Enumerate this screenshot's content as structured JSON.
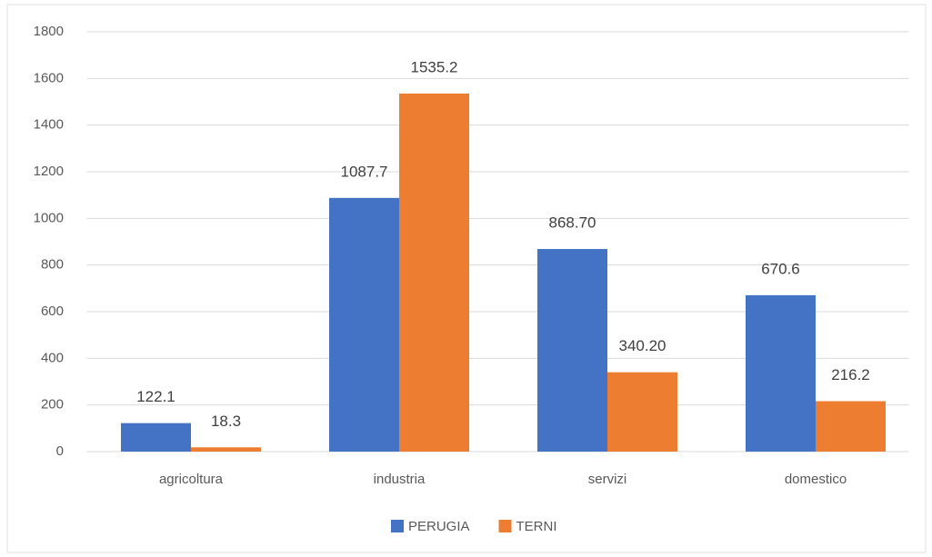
{
  "chart_data": {
    "type": "bar",
    "categories": [
      "agricoltura",
      "industria",
      "servizi",
      "domestico"
    ],
    "series": [
      {
        "name": "PERUGIA",
        "color": "#4472c4",
        "values": [
          122.1,
          1087.7,
          868.7,
          670.6
        ],
        "value_labels": [
          "122.1",
          "1087.7",
          "868.70",
          "670.6"
        ]
      },
      {
        "name": "TERNI",
        "color": "#ed7d31",
        "values": [
          18.3,
          1535.2,
          340.2,
          216.2
        ],
        "value_labels": [
          "18.3",
          "1535.2",
          "340.20",
          "216.2"
        ]
      }
    ],
    "ylim": [
      0,
      1800
    ],
    "yticks": [
      0,
      200,
      400,
      600,
      800,
      1000,
      1200,
      1400,
      1600,
      1800
    ],
    "grid": true,
    "legend": "bottom"
  }
}
